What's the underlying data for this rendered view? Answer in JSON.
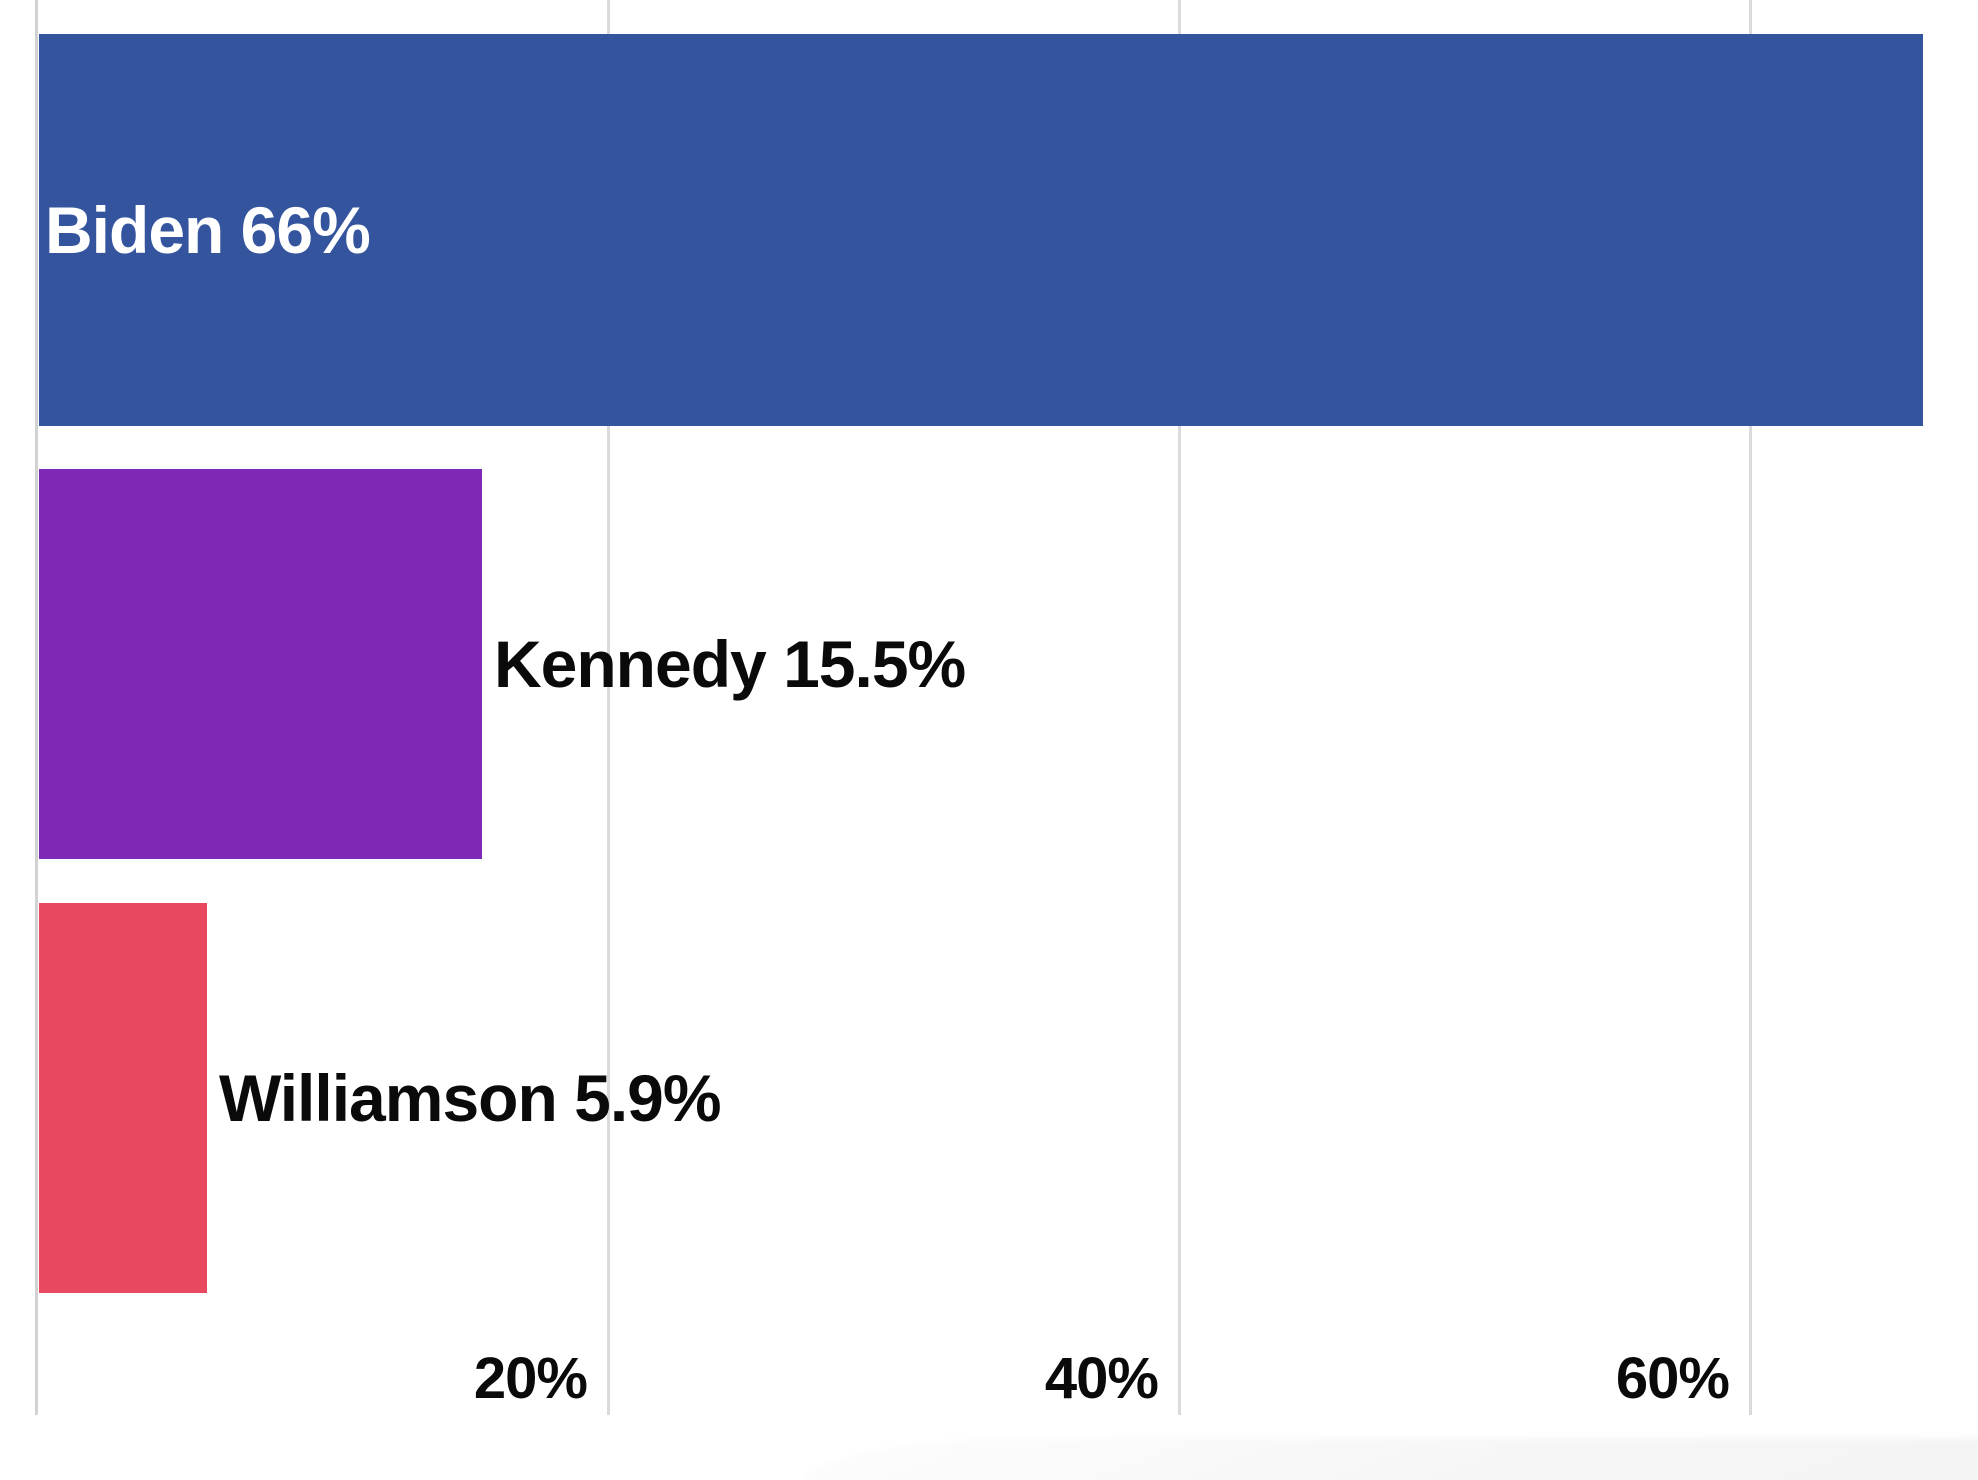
{
  "chart_data": {
    "type": "bar",
    "orientation": "horizontal",
    "title": "",
    "xlabel": "",
    "ylabel": "",
    "categories": [
      "Biden",
      "Kennedy",
      "Williamson"
    ],
    "values": [
      66,
      15.5,
      5.9
    ],
    "bars": [
      {
        "name": "Biden",
        "value": 66,
        "label": "Biden 66%",
        "color": "#34549E",
        "label_position": "inside",
        "label_color": "#FFFFFF"
      },
      {
        "name": "Kennedy",
        "value": 15.5,
        "label": "Kennedy 15.5%",
        "color": "#7D29B6",
        "label_position": "outside",
        "label_color": "#0A0A0A"
      },
      {
        "name": "Williamson",
        "value": 5.9,
        "label": "Williamson 5.9%",
        "color": "#E84961",
        "label_position": "outside",
        "label_color": "#0A0A0A"
      }
    ],
    "x_ticks": [
      {
        "label": "20%",
        "value": 20
      },
      {
        "label": "40%",
        "value": 40
      },
      {
        "label": "60%",
        "value": 60
      }
    ],
    "xlim": [
      0,
      68
    ],
    "grid": "vertical-gridlines-on",
    "legend": "none",
    "background_color": "#FFFFFF",
    "gridline_color": "#DADADA",
    "axis_line_color": "#D2D2D2"
  }
}
